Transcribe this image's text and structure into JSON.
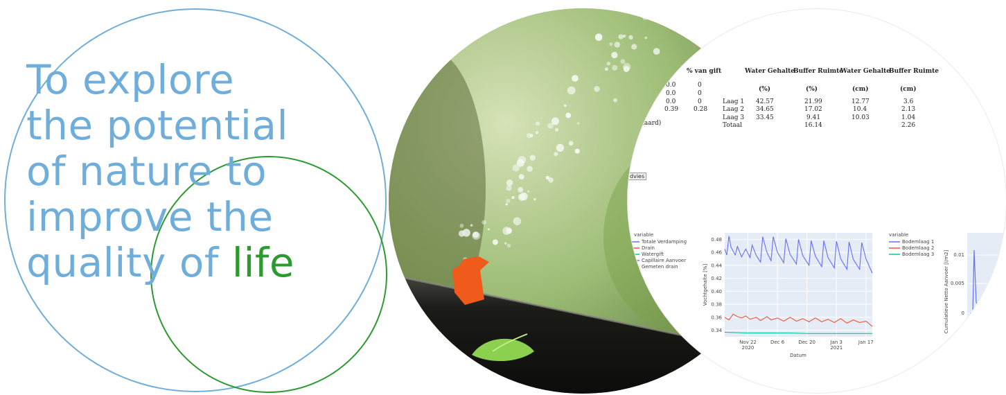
{
  "tagline": {
    "line1": "To explore",
    "line2": "the potential",
    "line3": "of nature to",
    "line4": "improve the",
    "line5_prefix": "quality of ",
    "line5_highlight": "life"
  },
  "colors": {
    "blue": "#6faedb",
    "green": "#2b9a2f"
  },
  "dashboard": {
    "left_table": {
      "header": "% van gift",
      "col_a": [
        "0.0",
        "0.0",
        "0.0",
        "0.39"
      ],
      "col_b": [
        "0",
        "0",
        "0",
        "0.28"
      ],
      "partial_label": "andaard)",
      "partial_button": "dvies"
    },
    "right_table": {
      "headers": [
        "Water Gehalte",
        "Buffer Ruimte",
        "Water Gehalte",
        "Buffer Ruimte"
      ],
      "units": [
        "(%)",
        "(%)",
        "(cm)",
        "(cm)"
      ],
      "rows": [
        {
          "label": "Laag 1",
          "values": [
            "42.57",
            "21.99",
            "12.77",
            "3.6"
          ]
        },
        {
          "label": "Laag 2",
          "values": [
            "34.65",
            "17.02",
            "10.4",
            "2.13"
          ]
        },
        {
          "label": "Laag 3",
          "values": [
            "33.45",
            "9.41",
            "10.03",
            "1.04"
          ]
        },
        {
          "label": "Totaal",
          "values": [
            "",
            "16.14",
            "",
            "2.26"
          ]
        }
      ]
    },
    "left_legend": {
      "title": "variable",
      "items": [
        {
          "name": "Totale Verdamping",
          "color": "#636efa"
        },
        {
          "name": "Drain",
          "color": "#ef553b"
        },
        {
          "name": "Watergift",
          "color": "#00cc96"
        },
        {
          "name": "Capillaire Aanvoer",
          "color": "#ab63fa"
        },
        {
          "name": "Gemeten drain",
          "color": "#ffa15a"
        }
      ]
    },
    "right_chart_partial": {
      "ylabel": "Cumulatieve Netto Aanvoer [l/m2]",
      "yticks": [
        "0.01",
        "0.005",
        "0"
      ]
    }
  },
  "chart_data": {
    "type": "line",
    "title": "",
    "xlabel": "Datum",
    "ylabel": "Vochtgehalte [%]",
    "ylim": [
      0.33,
      0.49
    ],
    "yticks": [
      0.34,
      0.36,
      0.38,
      0.4,
      0.42,
      0.44,
      0.46,
      0.48
    ],
    "xticks": [
      "Nov 22\n2020",
      "Dec 6",
      "Dec 20",
      "Jan 3\n2021",
      "Jan 17"
    ],
    "xlim": [
      0,
      70
    ],
    "xtick_positions": [
      11,
      25,
      39,
      53,
      67
    ],
    "legend_title": "variable",
    "grid": true,
    "series": [
      {
        "name": "Bodemlaag 1",
        "color": "#636efa",
        "x": [
          0,
          1,
          2,
          3,
          5,
          6,
          7,
          8,
          10,
          12,
          13,
          15,
          17,
          18,
          20,
          22,
          23,
          25,
          28,
          29,
          31,
          34,
          35,
          37,
          40,
          41,
          43,
          46,
          47,
          49,
          52,
          53,
          55,
          58,
          59,
          61,
          64,
          65,
          67,
          70
        ],
        "y": [
          0.465,
          0.456,
          0.485,
          0.468,
          0.456,
          0.469,
          0.461,
          0.453,
          0.465,
          0.452,
          0.471,
          0.455,
          0.445,
          0.484,
          0.46,
          0.447,
          0.484,
          0.46,
          0.444,
          0.481,
          0.457,
          0.442,
          0.48,
          0.455,
          0.44,
          0.478,
          0.454,
          0.438,
          0.478,
          0.452,
          0.436,
          0.477,
          0.45,
          0.434,
          0.476,
          0.449,
          0.434,
          0.475,
          0.45,
          0.428
        ]
      },
      {
        "name": "Bodemlaag 2",
        "color": "#ef553b",
        "x": [
          0,
          2,
          4,
          6,
          8,
          10,
          12,
          15,
          17,
          20,
          22,
          25,
          28,
          31,
          34,
          37,
          40,
          43,
          46,
          49,
          52,
          55,
          58,
          61,
          64,
          67,
          70
        ],
        "y": [
          0.36,
          0.356,
          0.365,
          0.361,
          0.359,
          0.362,
          0.357,
          0.36,
          0.355,
          0.361,
          0.356,
          0.359,
          0.354,
          0.36,
          0.354,
          0.358,
          0.353,
          0.359,
          0.353,
          0.357,
          0.352,
          0.358,
          0.351,
          0.356,
          0.352,
          0.354,
          0.346
        ]
      },
      {
        "name": "Bodemlaag 3",
        "color": "#00cc96",
        "x": [
          0,
          10,
          20,
          30,
          40,
          50,
          60,
          70
        ],
        "y": [
          0.337,
          0.336,
          0.336,
          0.336,
          0.335,
          0.335,
          0.335,
          0.335
        ]
      }
    ]
  }
}
